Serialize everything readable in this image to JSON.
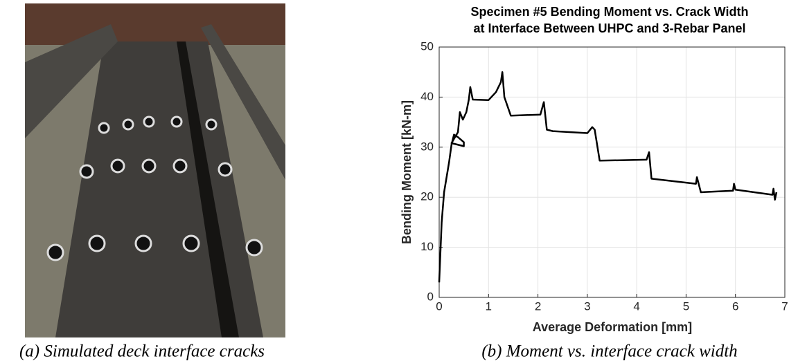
{
  "captions": [
    "(a) Simulated deck interface cracks",
    "(b) Moment vs. interface crack width"
  ],
  "chart_data": {
    "type": "line",
    "title": [
      "Specimen #5 Bending Moment vs. Crack Width",
      "at Interface Between UHPC and 3-Rebar Panel"
    ],
    "xlabel": "Average Deformation [mm]",
    "ylabel": "Bending Moment [kN-m]",
    "x": [
      0,
      0.05,
      0.1,
      0.2,
      0.25,
      0.3,
      0.38,
      0.5,
      0.5,
      0.25,
      0.38,
      0.42,
      0.48,
      0.55,
      0.6,
      0.63,
      0.68,
      1.0,
      1.15,
      1.25,
      1.28,
      1.32,
      1.45,
      2.05,
      2.12,
      2.18,
      2.3,
      3.0,
      3.1,
      3.15,
      3.25,
      4.2,
      4.25,
      4.3,
      5.2,
      5.22,
      5.3,
      5.95,
      5.97,
      6.0,
      6.75,
      6.77,
      6.8,
      6.83
    ],
    "values": [
      3,
      15,
      21,
      27,
      30.5,
      32.5,
      32,
      31,
      30.2,
      30.8,
      33,
      37,
      35.5,
      37,
      39.5,
      42,
      39.5,
      39.4,
      41,
      43,
      45,
      40,
      36.3,
      36.5,
      39,
      33.5,
      33.2,
      32.8,
      34,
      33.5,
      27.3,
      27.5,
      29,
      23.7,
      22.7,
      24,
      21,
      21.3,
      22.7,
      21.5,
      20.5,
      21.7,
      19.5,
      21
    ],
    "color": "#000000",
    "xlim": [
      0,
      7
    ],
    "xticks": [
      0,
      1,
      2,
      3,
      4,
      5,
      6,
      7
    ],
    "ylim": [
      0,
      50
    ],
    "yticks": [
      0,
      10,
      20,
      30,
      40,
      50
    ],
    "grid": true
  }
}
